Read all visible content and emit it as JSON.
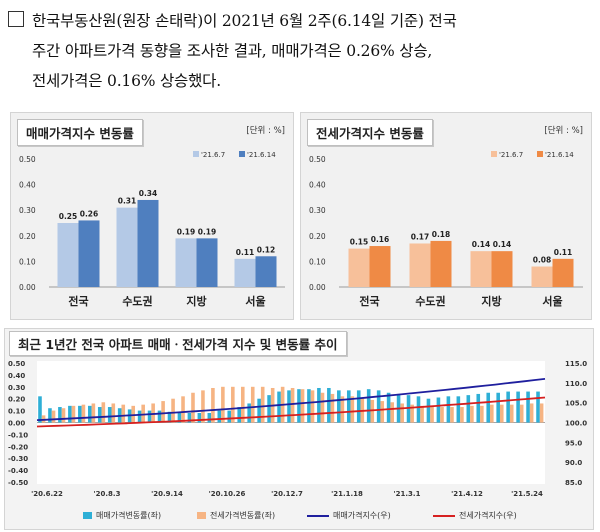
{
  "intro": {
    "line1": "한국부동산원(원장 손태락)이 2021년 6월 2주(6.14일 기준) 전국",
    "line2": "주간 아파트가격 동향을 조사한 결과, 매매가격은 0.26% 상승,",
    "line3": "전세가격은 0.16% 상승했다."
  },
  "chart_data": [
    {
      "type": "bar",
      "title": "매매가격지수 변동률",
      "unit": "[단위 : %]",
      "categories": [
        "전국",
        "수도권",
        "지방",
        "서울"
      ],
      "series": [
        {
          "name": "'21.6.7",
          "color": "#b4c9e6",
          "values": [
            0.25,
            0.31,
            0.19,
            0.11
          ]
        },
        {
          "name": "'21.6.14",
          "color": "#4f7fbf",
          "values": [
            0.26,
            0.34,
            0.19,
            0.12
          ]
        }
      ],
      "ylim": [
        0,
        0.5
      ],
      "yticks": [
        "0.00",
        "0.10",
        "0.20",
        "0.30",
        "0.40",
        "0.50"
      ]
    },
    {
      "type": "bar",
      "title": "전세가격지수 변동률",
      "unit": "[단위 : %]",
      "categories": [
        "전국",
        "수도권",
        "지방",
        "서울"
      ],
      "series": [
        {
          "name": "'21.6.7",
          "color": "#f7c09a",
          "values": [
            0.15,
            0.17,
            0.14,
            0.08
          ]
        },
        {
          "name": "'21.6.14",
          "color": "#ef8a45",
          "values": [
            0.16,
            0.18,
            0.14,
            0.11
          ]
        }
      ],
      "ylim": [
        0,
        0.5
      ],
      "yticks": [
        "0.00",
        "0.10",
        "0.20",
        "0.30",
        "0.40",
        "0.50"
      ]
    },
    {
      "type": "bar+line",
      "title": "최근 1년간 전국 아파트 매매ㆍ전세가격 지수 및 변동률 추이",
      "xticks": [
        "'20.6.22",
        "'20.8.3",
        "'20.9.14",
        "'20.10.26",
        "'20.12.7",
        "'21.1.18",
        "'21.3.1",
        "'21.4.12",
        "'21.5.24"
      ],
      "left_axis": {
        "ylim": [
          -0.5,
          0.5
        ],
        "ticks": [
          "0.50",
          "0.40",
          "0.30",
          "0.20",
          "0.10",
          "0.00",
          "-0.10",
          "-0.20",
          "-0.30",
          "-0.40",
          "-0.50"
        ]
      },
      "right_axis": {
        "ylim": [
          85,
          115
        ],
        "ticks": [
          "115.0",
          "110.0",
          "105.0",
          "100.0",
          "95.0",
          "90.0",
          "85.0"
        ]
      },
      "series": [
        {
          "name": "매매가격변동률(좌)",
          "kind": "bar",
          "axis": "left",
          "color": "#2eafd6",
          "values": [
            0.22,
            0.12,
            0.13,
            0.14,
            0.14,
            0.14,
            0.13,
            0.13,
            0.12,
            0.11,
            0.1,
            0.1,
            0.1,
            0.09,
            0.09,
            0.08,
            0.08,
            0.08,
            0.1,
            0.1,
            0.13,
            0.16,
            0.2,
            0.23,
            0.26,
            0.27,
            0.28,
            0.28,
            0.29,
            0.29,
            0.27,
            0.27,
            0.27,
            0.28,
            0.27,
            0.25,
            0.24,
            0.23,
            0.22,
            0.2,
            0.21,
            0.22,
            0.22,
            0.23,
            0.24,
            0.25,
            0.25,
            0.26,
            0.26,
            0.26,
            0.26
          ]
        },
        {
          "name": "전세가격변동률(좌)",
          "kind": "bar",
          "axis": "left",
          "color": "#f6b483",
          "values": [
            0.06,
            0.1,
            0.12,
            0.14,
            0.15,
            0.16,
            0.17,
            0.16,
            0.15,
            0.14,
            0.15,
            0.16,
            0.18,
            0.2,
            0.22,
            0.25,
            0.27,
            0.29,
            0.3,
            0.3,
            0.3,
            0.3,
            0.3,
            0.29,
            0.3,
            0.29,
            0.28,
            0.27,
            0.25,
            0.24,
            0.22,
            0.22,
            0.2,
            0.19,
            0.18,
            0.17,
            0.16,
            0.15,
            0.14,
            0.13,
            0.13,
            0.13,
            0.13,
            0.14,
            0.14,
            0.15,
            0.15,
            0.15,
            0.15,
            0.16,
            0.16
          ]
        },
        {
          "name": "매매가격지수(우)",
          "kind": "line",
          "axis": "right",
          "color": "#1f1f9e",
          "values": [
            100.6,
            111.0
          ]
        },
        {
          "name": "전세가격지수(우)",
          "kind": "line",
          "axis": "right",
          "color": "#d62020",
          "values": [
            99.0,
            106.3
          ]
        }
      ]
    }
  ]
}
